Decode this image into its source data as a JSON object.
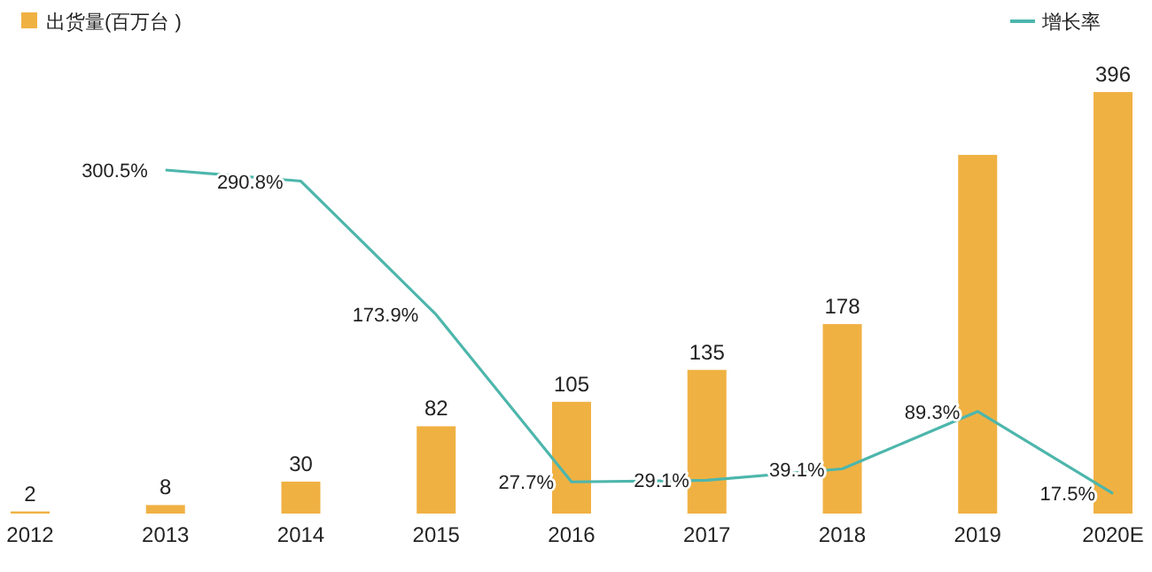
{
  "chart_data": {
    "type": "bar",
    "categories": [
      "2012",
      "2013",
      "2014",
      "2015",
      "2016",
      "2017",
      "2018",
      "2019",
      "2020E"
    ],
    "series": [
      {
        "name": "出货量(百万台 )",
        "color": "#f0b143",
        "values": [
          2,
          8,
          30,
          82,
          105,
          135,
          178,
          337,
          396
        ],
        "value_labels": [
          "2",
          "8",
          "30",
          "82",
          "105",
          "135",
          "178",
          null,
          "396"
        ]
      },
      {
        "name": "增长率",
        "type": "line",
        "axis": "y2",
        "color": "#4db6ac",
        "values": [
          null,
          300.5,
          290.8,
          173.9,
          27.7,
          29.1,
          39.1,
          89.3,
          17.5
        ],
        "value_labels": [
          null,
          "300.5%",
          "290.8%",
          "173.9%",
          "27.7%",
          "29.1%",
          "39.1%",
          "89.3%",
          "17.5%"
        ]
      }
    ],
    "legend": "top",
    "tick_labels": "x",
    "marker": "none"
  }
}
